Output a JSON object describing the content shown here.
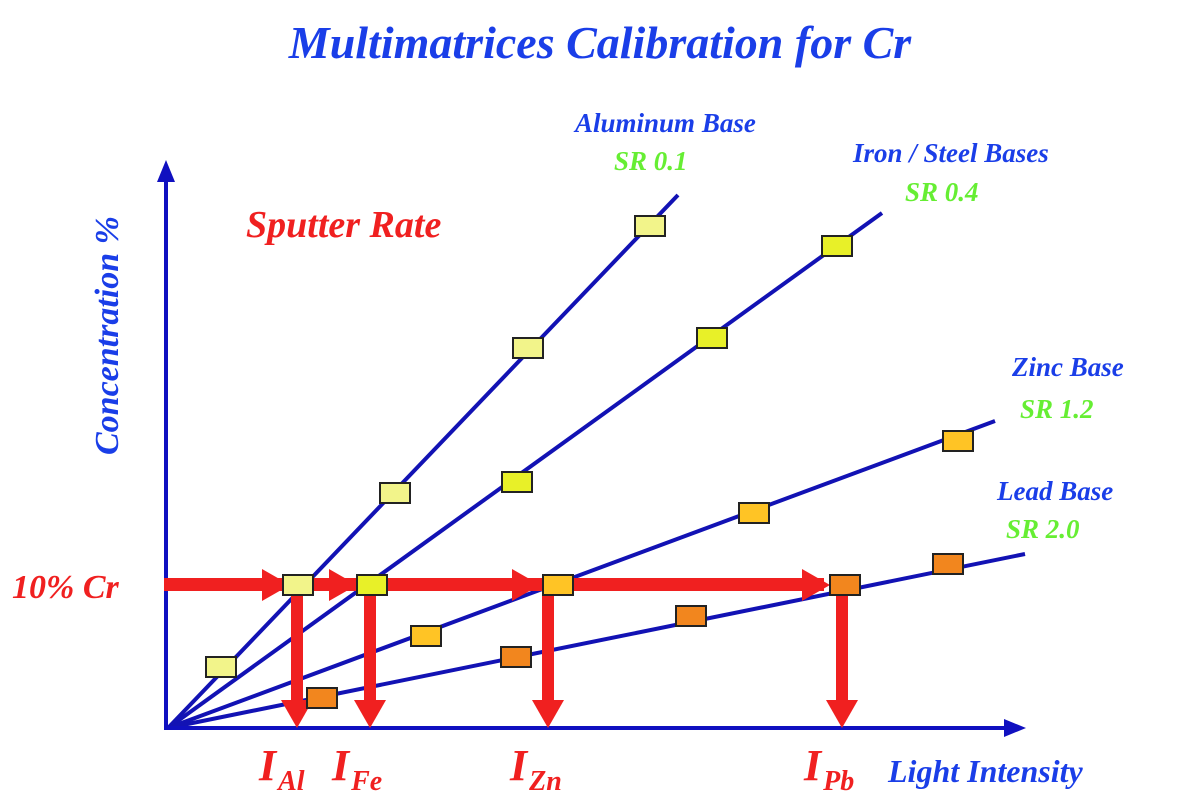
{
  "title": "Multimatrices Calibration for Cr",
  "y_axis_label": "Concentration %",
  "x_axis_label": "Light Intensity",
  "annotation": "Sputter Rate",
  "reference_label": "10% Cr",
  "colors": {
    "title": "#1a3ee8",
    "axis": "#1010b0",
    "arrow": "#f02020",
    "sr": "#66ee33"
  },
  "series": [
    {
      "name": "Aluminum Base",
      "sr": "SR  0.1",
      "intensity_label": "I",
      "intensity_sub": "Al",
      "marker_color": "#f2f48a"
    },
    {
      "name": "Iron / Steel Bases",
      "sr": "SR  0.4",
      "intensity_label": "I",
      "intensity_sub": "Fe",
      "marker_color": "#e8f028"
    },
    {
      "name": "Zinc Base",
      "sr": "SR  1.2",
      "intensity_label": "I",
      "intensity_sub": "Zn",
      "marker_color": "#ffc425"
    },
    {
      "name": "Lead Base",
      "sr": "SR  2.0",
      "intensity_label": "I",
      "intensity_sub": "Pb",
      "marker_color": "#f2861e"
    }
  ]
}
